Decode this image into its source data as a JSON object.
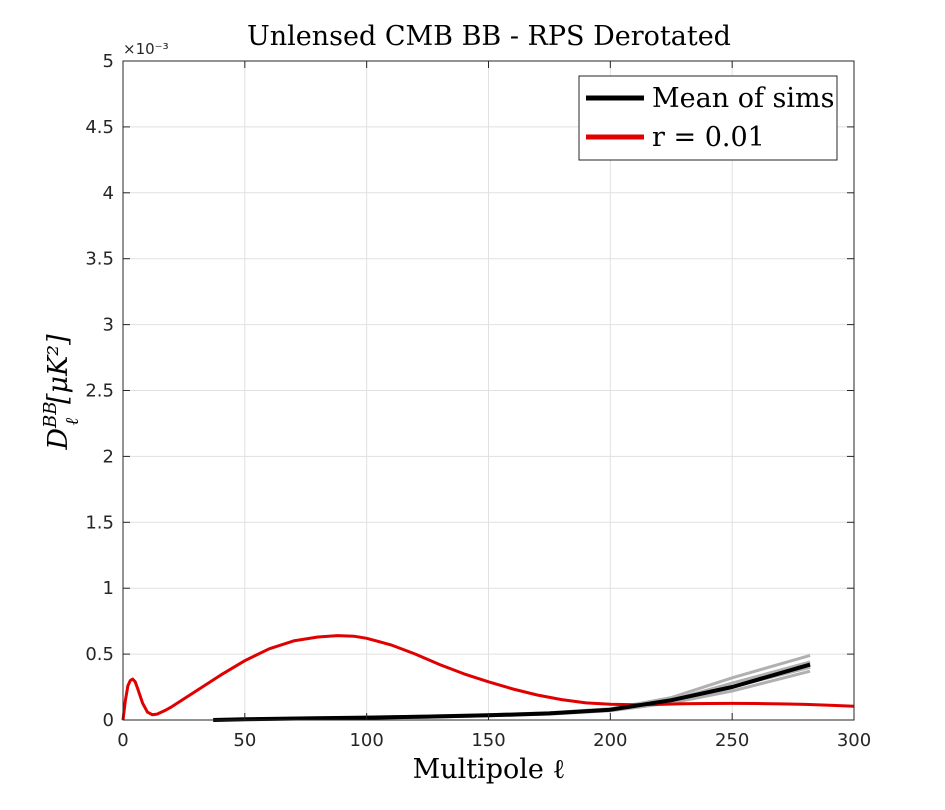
{
  "chart_data": {
    "type": "line",
    "title": "Unlensed CMB BB - RPS Derotated",
    "xlabel": "Multipole ℓ",
    "ylabel": "D",
    "ylabel_sup": "BB",
    "ylabel_sub": "ℓ",
    "ylabel_unit": "[μK²]",
    "exponent_label": "×10⁻³",
    "xlim": [
      0,
      300
    ],
    "ylim": [
      0,
      5
    ],
    "xticks": [
      0,
      50,
      100,
      150,
      200,
      250,
      300
    ],
    "yticks": [
      0,
      0.5,
      1,
      1.5,
      2,
      2.5,
      3,
      3.5,
      4,
      4.5,
      5
    ],
    "xtick_labels": [
      "0",
      "50",
      "100",
      "150",
      "200",
      "250",
      "300"
    ],
    "ytick_labels": [
      "0",
      "0.5",
      "1",
      "1.5",
      "2",
      "2.5",
      "3",
      "3.5",
      "4",
      "4.5",
      "5"
    ],
    "grid": true,
    "legend_position": "top-right",
    "legend": [
      "Mean of sims",
      "r = 0.01"
    ],
    "colors": {
      "sims": "#b0b0b0",
      "mean": "#000000",
      "theory": "#e00000",
      "grid": "#e1e1e1",
      "axis": "#262626"
    },
    "sims": [
      {
        "x": [
          37,
          75,
          100,
          125,
          150,
          175,
          200,
          225,
          250,
          282
        ],
        "y": [
          0.0,
          0.015,
          0.02,
          0.03,
          0.04,
          0.055,
          0.085,
          0.17,
          0.32,
          0.49
        ]
      },
      {
        "x": [
          37,
          75,
          100,
          125,
          150,
          175,
          200,
          225,
          250,
          282
        ],
        "y": [
          0.0,
          0.01,
          0.015,
          0.022,
          0.032,
          0.045,
          0.07,
          0.13,
          0.22,
          0.37
        ]
      },
      {
        "x": [
          37,
          75,
          100,
          125,
          150,
          175,
          200,
          225,
          250,
          282
        ],
        "y": [
          0.0,
          0.012,
          0.02,
          0.027,
          0.037,
          0.052,
          0.08,
          0.15,
          0.28,
          0.44
        ]
      },
      {
        "x": [
          37,
          75,
          100,
          125,
          150,
          175,
          200,
          225,
          250,
          282
        ],
        "y": [
          0.0,
          0.011,
          0.017,
          0.024,
          0.034,
          0.049,
          0.074,
          0.145,
          0.25,
          0.4
        ]
      }
    ],
    "series": [
      {
        "name": "Mean of sims",
        "x": [
          37,
          50,
          75,
          100,
          125,
          150,
          175,
          200,
          225,
          250,
          282
        ],
        "y": [
          0.0,
          0.005,
          0.012,
          0.018,
          0.026,
          0.036,
          0.05,
          0.078,
          0.15,
          0.25,
          0.42
        ]
      },
      {
        "name": "r = 0.01",
        "x": [
          0,
          1,
          2,
          3,
          4,
          5,
          6,
          8,
          10,
          12,
          14,
          17,
          20,
          25,
          30,
          40,
          50,
          60,
          70,
          80,
          88,
          95,
          100,
          110,
          120,
          130,
          140,
          150,
          160,
          170,
          180,
          190,
          200,
          210,
          220,
          230,
          240,
          250,
          260,
          270,
          280,
          290,
          300
        ],
        "y": [
          0.0,
          0.15,
          0.26,
          0.3,
          0.31,
          0.29,
          0.24,
          0.13,
          0.06,
          0.04,
          0.045,
          0.07,
          0.1,
          0.16,
          0.22,
          0.34,
          0.45,
          0.54,
          0.6,
          0.63,
          0.64,
          0.635,
          0.62,
          0.57,
          0.5,
          0.42,
          0.35,
          0.29,
          0.235,
          0.19,
          0.155,
          0.13,
          0.12,
          0.115,
          0.118,
          0.123,
          0.125,
          0.126,
          0.125,
          0.122,
          0.118,
          0.112,
          0.105
        ]
      }
    ]
  }
}
